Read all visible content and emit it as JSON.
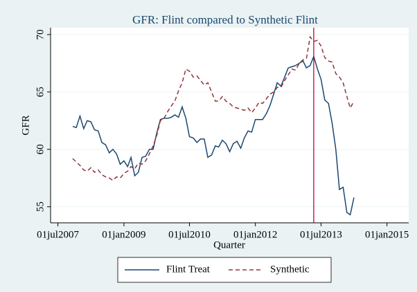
{
  "chart_data": {
    "type": "line",
    "title": "GFR: Flint compared to Synthetic Flint",
    "x_label": "Quarter",
    "y_label": "GFR",
    "x": [
      "2007-11-01",
      "2007-12-01",
      "2008-01-01",
      "2008-02-01",
      "2008-03-01",
      "2008-04-01",
      "2008-05-01",
      "2008-06-01",
      "2008-07-01",
      "2008-08-01",
      "2008-09-01",
      "2008-10-01",
      "2008-11-01",
      "2008-12-01",
      "2009-01-01",
      "2009-02-01",
      "2009-03-01",
      "2009-04-01",
      "2009-05-01",
      "2009-06-01",
      "2009-07-01",
      "2009-08-01",
      "2009-09-01",
      "2009-10-01",
      "2009-11-01",
      "2009-12-01",
      "2010-01-01",
      "2010-02-01",
      "2010-03-01",
      "2010-04-01",
      "2010-05-01",
      "2010-06-01",
      "2010-07-01",
      "2010-08-01",
      "2010-09-01",
      "2010-10-01",
      "2010-11-01",
      "2010-12-01",
      "2011-01-01",
      "2011-02-01",
      "2011-03-01",
      "2011-04-01",
      "2011-05-01",
      "2011-06-01",
      "2011-07-01",
      "2011-08-01",
      "2011-09-01",
      "2011-10-01",
      "2011-11-01",
      "2011-12-01",
      "2012-01-01",
      "2012-02-01",
      "2012-03-01",
      "2012-04-01",
      "2012-05-01",
      "2012-06-01",
      "2012-07-01",
      "2012-08-01",
      "2012-09-01",
      "2012-10-01",
      "2012-11-01",
      "2012-12-01",
      "2013-01-01",
      "2013-02-01",
      "2013-03-01",
      "2013-04-01",
      "2013-05-01",
      "2013-06-01",
      "2013-07-01",
      "2013-08-01",
      "2013-09-01",
      "2013-10-01",
      "2013-11-01",
      "2013-12-01",
      "2014-01-01",
      "2014-02-01",
      "2014-03-01",
      "2014-04-01"
    ],
    "series": [
      {
        "name": "Flint Treat",
        "color": "#1a476f",
        "dash": "solid",
        "values": [
          62.0,
          61.9,
          62.9,
          61.8,
          62.5,
          62.4,
          61.7,
          61.6,
          60.6,
          60.4,
          59.7,
          60.0,
          59.6,
          58.7,
          59.0,
          58.5,
          59.3,
          57.7,
          58.0,
          59.3,
          59.4,
          60.0,
          60.0,
          61.4,
          62.6,
          62.7,
          62.7,
          62.8,
          63.0,
          62.8,
          63.7,
          62.7,
          61.1,
          61.0,
          60.6,
          60.9,
          60.9,
          59.3,
          59.5,
          60.3,
          60.2,
          60.8,
          60.5,
          59.8,
          60.5,
          60.7,
          60.1,
          61.0,
          61.6,
          61.5,
          62.6,
          62.6,
          62.6,
          63.1,
          63.8,
          64.8,
          65.8,
          65.5,
          66.3,
          67.1,
          67.2,
          67.3,
          67.5,
          67.7,
          67.1,
          67.3,
          68.1,
          67.0,
          66.1,
          64.3,
          64.0,
          62.3,
          60.0,
          56.5,
          56.7,
          54.5,
          54.3,
          55.8
        ]
      },
      {
        "name": "Synthetic",
        "color": "#90353b",
        "dash": "dashed",
        "values": [
          59.2,
          58.9,
          58.6,
          58.2,
          58.1,
          58.4,
          58.0,
          58.2,
          57.8,
          57.6,
          57.5,
          57.3,
          57.6,
          57.5,
          57.9,
          58.1,
          58.5,
          58.3,
          58.8,
          58.7,
          59.0,
          59.6,
          60.3,
          61.2,
          62.5,
          62.7,
          63.3,
          63.8,
          64.2,
          65.1,
          65.8,
          67.0,
          66.8,
          66.3,
          66.4,
          66.0,
          65.6,
          65.8,
          65.0,
          64.2,
          64.2,
          64.6,
          64.2,
          64.0,
          63.7,
          63.6,
          63.5,
          63.4,
          63.6,
          63.2,
          63.6,
          64.1,
          64.0,
          64.4,
          64.8,
          65.0,
          65.4,
          65.4,
          66.0,
          66.5,
          67.0,
          66.9,
          67.5,
          67.8,
          67.9,
          69.8,
          69.4,
          69.5,
          69.0,
          68.0,
          67.7,
          67.6,
          66.6,
          66.3,
          65.8,
          64.6,
          63.6,
          64.2
        ]
      }
    ],
    "xline": {
      "value": "2013-05-01",
      "color": "#c10534"
    },
    "xlim": [
      "2007-05-01",
      "2015-07-01"
    ],
    "xticks": [
      {
        "value": "2007-07-01",
        "label": "01jul2007"
      },
      {
        "value": "2009-01-01",
        "label": "01jan2009"
      },
      {
        "value": "2010-07-01",
        "label": "01jul2010"
      },
      {
        "value": "2012-01-01",
        "label": "01jan2012"
      },
      {
        "value": "2013-07-01",
        "label": "01jul2013"
      },
      {
        "value": "2015-01-01",
        "label": "01jan2015"
      }
    ],
    "ylim": [
      53.6,
      70.6
    ],
    "yticks": [
      55,
      60,
      65,
      70
    ],
    "grid": true,
    "legend_position": "bottom"
  }
}
